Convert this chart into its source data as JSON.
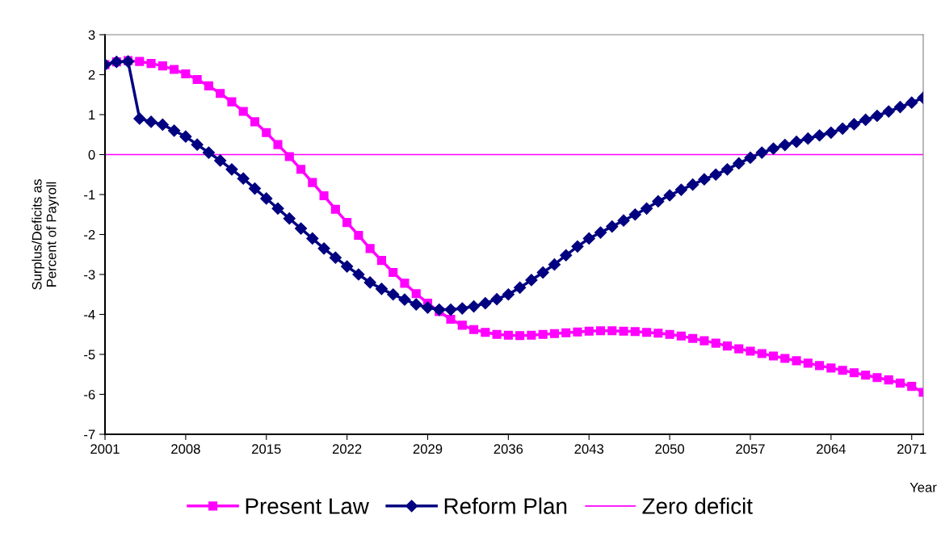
{
  "chart_data": {
    "type": "line",
    "xlabel": "Year",
    "ylabel": "Surplus/Deficits as\nPercent of Payroll",
    "x": [
      2001,
      2002,
      2003,
      2004,
      2005,
      2006,
      2007,
      2008,
      2009,
      2010,
      2011,
      2012,
      2013,
      2014,
      2015,
      2016,
      2017,
      2018,
      2019,
      2020,
      2021,
      2022,
      2023,
      2024,
      2025,
      2026,
      2027,
      2028,
      2029,
      2030,
      2031,
      2032,
      2033,
      2034,
      2035,
      2036,
      2037,
      2038,
      2039,
      2040,
      2041,
      2042,
      2043,
      2044,
      2045,
      2046,
      2047,
      2048,
      2049,
      2050,
      2051,
      2052,
      2053,
      2054,
      2055,
      2056,
      2057,
      2058,
      2059,
      2060,
      2061,
      2062,
      2063,
      2064,
      2065,
      2066,
      2067,
      2068,
      2069,
      2070,
      2071,
      2072
    ],
    "series": [
      {
        "name": "Present Law",
        "color": "#ff00ff",
        "marker": "square",
        "values": [
          2.25,
          2.32,
          2.35,
          2.33,
          2.28,
          2.22,
          2.13,
          2.02,
          1.88,
          1.72,
          1.53,
          1.32,
          1.08,
          0.82,
          0.55,
          0.25,
          -0.05,
          -0.37,
          -0.7,
          -1.03,
          -1.37,
          -1.7,
          -2.02,
          -2.35,
          -2.65,
          -2.95,
          -3.22,
          -3.48,
          -3.72,
          -3.93,
          -4.12,
          -4.27,
          -4.38,
          -4.45,
          -4.5,
          -4.52,
          -4.53,
          -4.52,
          -4.5,
          -4.48,
          -4.46,
          -4.44,
          -4.42,
          -4.41,
          -4.41,
          -4.42,
          -4.43,
          -4.45,
          -4.47,
          -4.5,
          -4.54,
          -4.6,
          -4.66,
          -4.72,
          -4.79,
          -4.86,
          -4.92,
          -4.98,
          -5.04,
          -5.1,
          -5.16,
          -5.22,
          -5.28,
          -5.34,
          -5.4,
          -5.46,
          -5.52,
          -5.58,
          -5.64,
          -5.72,
          -5.8,
          -5.95
        ]
      },
      {
        "name": "Reform Plan",
        "color": "#000080",
        "marker": "diamond",
        "values": [
          2.25,
          2.32,
          2.33,
          0.9,
          0.82,
          0.75,
          0.6,
          0.45,
          0.25,
          0.05,
          -0.15,
          -0.37,
          -0.6,
          -0.85,
          -1.1,
          -1.35,
          -1.6,
          -1.85,
          -2.1,
          -2.35,
          -2.58,
          -2.8,
          -3.0,
          -3.2,
          -3.36,
          -3.5,
          -3.63,
          -3.75,
          -3.83,
          -3.88,
          -3.88,
          -3.85,
          -3.8,
          -3.72,
          -3.62,
          -3.5,
          -3.33,
          -3.14,
          -2.95,
          -2.75,
          -2.52,
          -2.3,
          -2.1,
          -1.95,
          -1.8,
          -1.65,
          -1.5,
          -1.35,
          -1.17,
          -1.02,
          -0.88,
          -0.75,
          -0.62,
          -0.5,
          -0.37,
          -0.22,
          -0.08,
          0.05,
          0.15,
          0.24,
          0.32,
          0.4,
          0.48,
          0.55,
          0.65,
          0.76,
          0.87,
          0.97,
          1.08,
          1.19,
          1.3,
          1.42
        ]
      }
    ],
    "ref_lines": [
      {
        "axis": "y",
        "value": 0,
        "label": "Zero deficit",
        "color": "#ff00ff"
      }
    ],
    "xlim": [
      2001,
      2072
    ],
    "xticks": [
      2001,
      2008,
      2015,
      2022,
      2029,
      2036,
      2043,
      2050,
      2057,
      2064,
      2071
    ],
    "ylim": [
      -7,
      3
    ],
    "yticks": [
      -7,
      -6,
      -5,
      -4,
      -3,
      -2,
      -1,
      0,
      1,
      2,
      3
    ],
    "grid": false,
    "legend": "bottom"
  }
}
